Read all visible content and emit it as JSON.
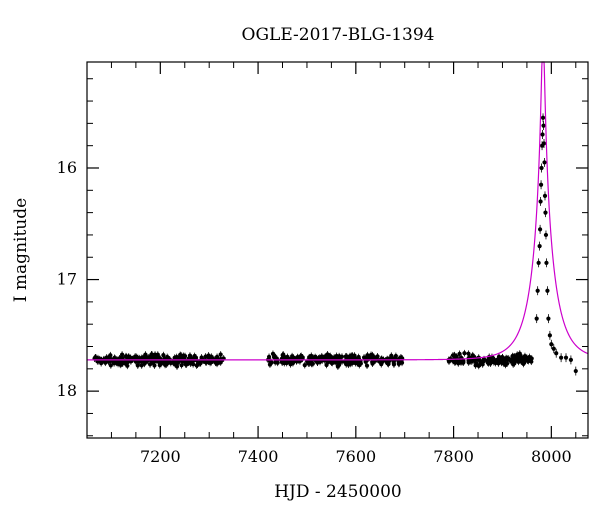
{
  "chart_data": {
    "type": "scatter",
    "title": "OGLE-2017-BLG-1394",
    "xlabel": "HJD - 2450000",
    "ylabel": "I magnitude",
    "xlim": [
      7050,
      8075
    ],
    "ylim": [
      18.42,
      15.05
    ],
    "y_inverted": true,
    "xticks": [
      7200,
      7400,
      7600,
      7800,
      8000
    ],
    "yticks": [
      16,
      17,
      18
    ],
    "x_minor_step": 50,
    "y_minor_step": 0.2,
    "grid": false,
    "legend": "none",
    "colors": {
      "points": "#000000",
      "model": "#cc00cc",
      "axes": "#000000"
    },
    "baseline_magnitude": 17.72,
    "observing_seasons": [
      {
        "start": 7065,
        "end": 7330
      },
      {
        "start": 7420,
        "end": 7695
      },
      {
        "start": 7790,
        "end": 8060
      }
    ],
    "peak": {
      "hjd": 7983,
      "magnitude": 15.55
    },
    "model": {
      "type": "pspl",
      "t0": 7983,
      "u0": 0.0686,
      "tE": 44,
      "baseline": 17.72
    },
    "lensing_points": [
      {
        "x": 7970,
        "y": 17.35
      },
      {
        "x": 7972,
        "y": 17.1
      },
      {
        "x": 7974,
        "y": 16.85
      },
      {
        "x": 7976,
        "y": 16.7
      },
      {
        "x": 7977,
        "y": 16.55
      },
      {
        "x": 7978,
        "y": 16.3
      },
      {
        "x": 7979,
        "y": 16.15
      },
      {
        "x": 7980,
        "y": 16.0
      },
      {
        "x": 7981,
        "y": 15.8
      },
      {
        "x": 7982,
        "y": 15.7
      },
      {
        "x": 7983,
        "y": 15.55
      },
      {
        "x": 7984,
        "y": 15.62
      },
      {
        "x": 7985,
        "y": 15.78
      },
      {
        "x": 7986,
        "y": 15.95
      },
      {
        "x": 7987,
        "y": 16.25
      },
      {
        "x": 7988,
        "y": 16.4
      },
      {
        "x": 7989,
        "y": 16.6
      },
      {
        "x": 7990,
        "y": 16.85
      },
      {
        "x": 7992,
        "y": 17.1
      },
      {
        "x": 7994,
        "y": 17.35
      },
      {
        "x": 7997,
        "y": 17.5
      },
      {
        "x": 8000,
        "y": 17.58
      },
      {
        "x": 8005,
        "y": 17.62
      },
      {
        "x": 8010,
        "y": 17.66
      },
      {
        "x": 8020,
        "y": 17.7
      },
      {
        "x": 8030,
        "y": 17.7
      },
      {
        "x": 8040,
        "y": 17.72
      },
      {
        "x": 8050,
        "y": 17.82
      }
    ]
  }
}
